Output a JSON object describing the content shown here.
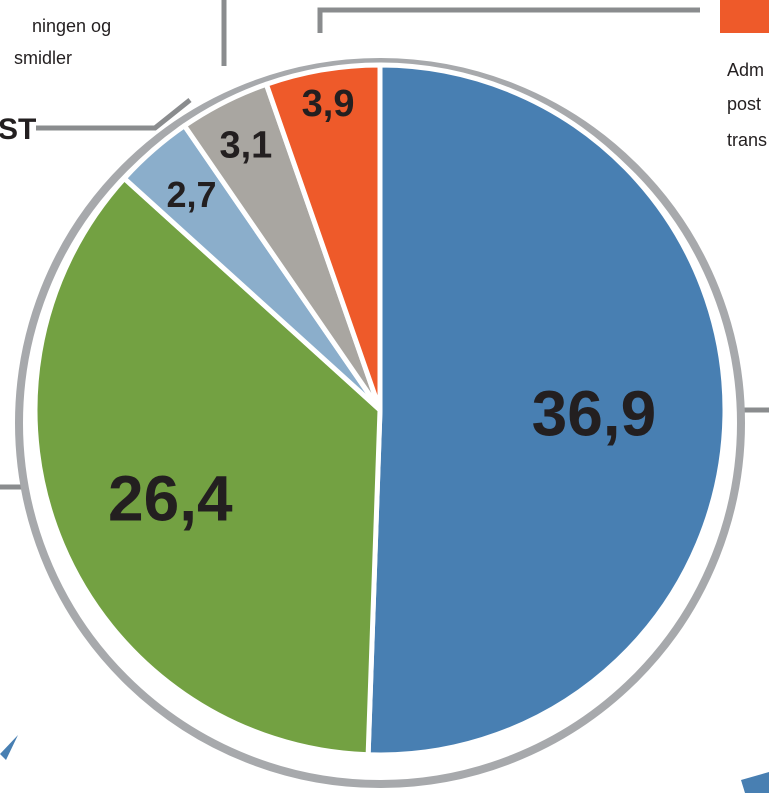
{
  "chart_data": {
    "type": "pie",
    "values": [
      36.9,
      26.4,
      2.7,
      3.1,
      3.9
    ],
    "value_labels": [
      "36,9",
      "26,4",
      "2,7",
      "3,1",
      "3,9"
    ],
    "colors": [
      "#487fb2",
      "#73a142",
      "#8baecb",
      "#a9a6a1",
      "#ee5a2a"
    ],
    "start": "12 o'clock",
    "direction": "clockwise",
    "outer_ring_color": "#a7a9ac",
    "connector_color": "#8a8c8e"
  },
  "callouts": {
    "top_left_line1": "ningen og",
    "top_left_line2": "smidler",
    "left_cut_text": "ST",
    "right_line1": "Adm",
    "right_line2": "post",
    "right_line3": "trans"
  },
  "legend": {
    "swatch_color": "#ee5a2a"
  },
  "decoration": {
    "arrow_color": "#487fb2"
  }
}
